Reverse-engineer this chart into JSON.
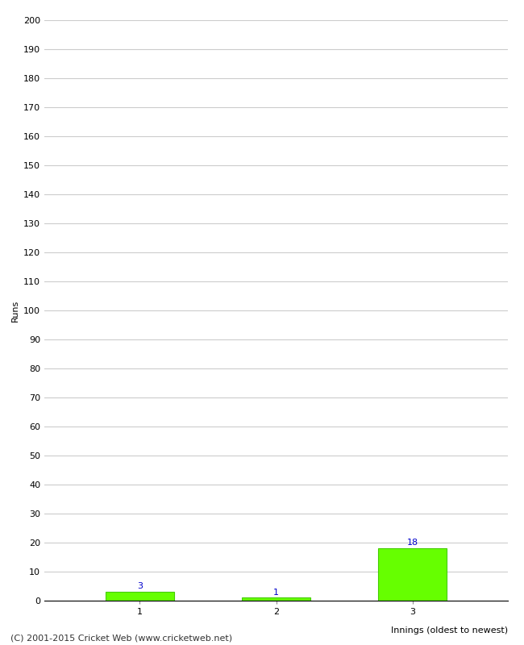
{
  "categories": [
    "1",
    "2",
    "3"
  ],
  "values": [
    3,
    1,
    18
  ],
  "bar_color": "#66ff00",
  "bar_edge_color": "#44cc00",
  "ylabel": "Runs",
  "xlabel": "Innings (oldest to newest)",
  "ylim": [
    0,
    200
  ],
  "yticks": [
    0,
    10,
    20,
    30,
    40,
    50,
    60,
    70,
    80,
    90,
    100,
    110,
    120,
    130,
    140,
    150,
    160,
    170,
    180,
    190,
    200
  ],
  "value_label_color": "#0000cc",
  "value_label_fontsize": 8,
  "axis_label_fontsize": 8,
  "tick_label_fontsize": 8,
  "footer_text": "(C) 2001-2015 Cricket Web (www.cricketweb.net)",
  "footer_fontsize": 8,
  "background_color": "#ffffff",
  "grid_color": "#cccccc"
}
